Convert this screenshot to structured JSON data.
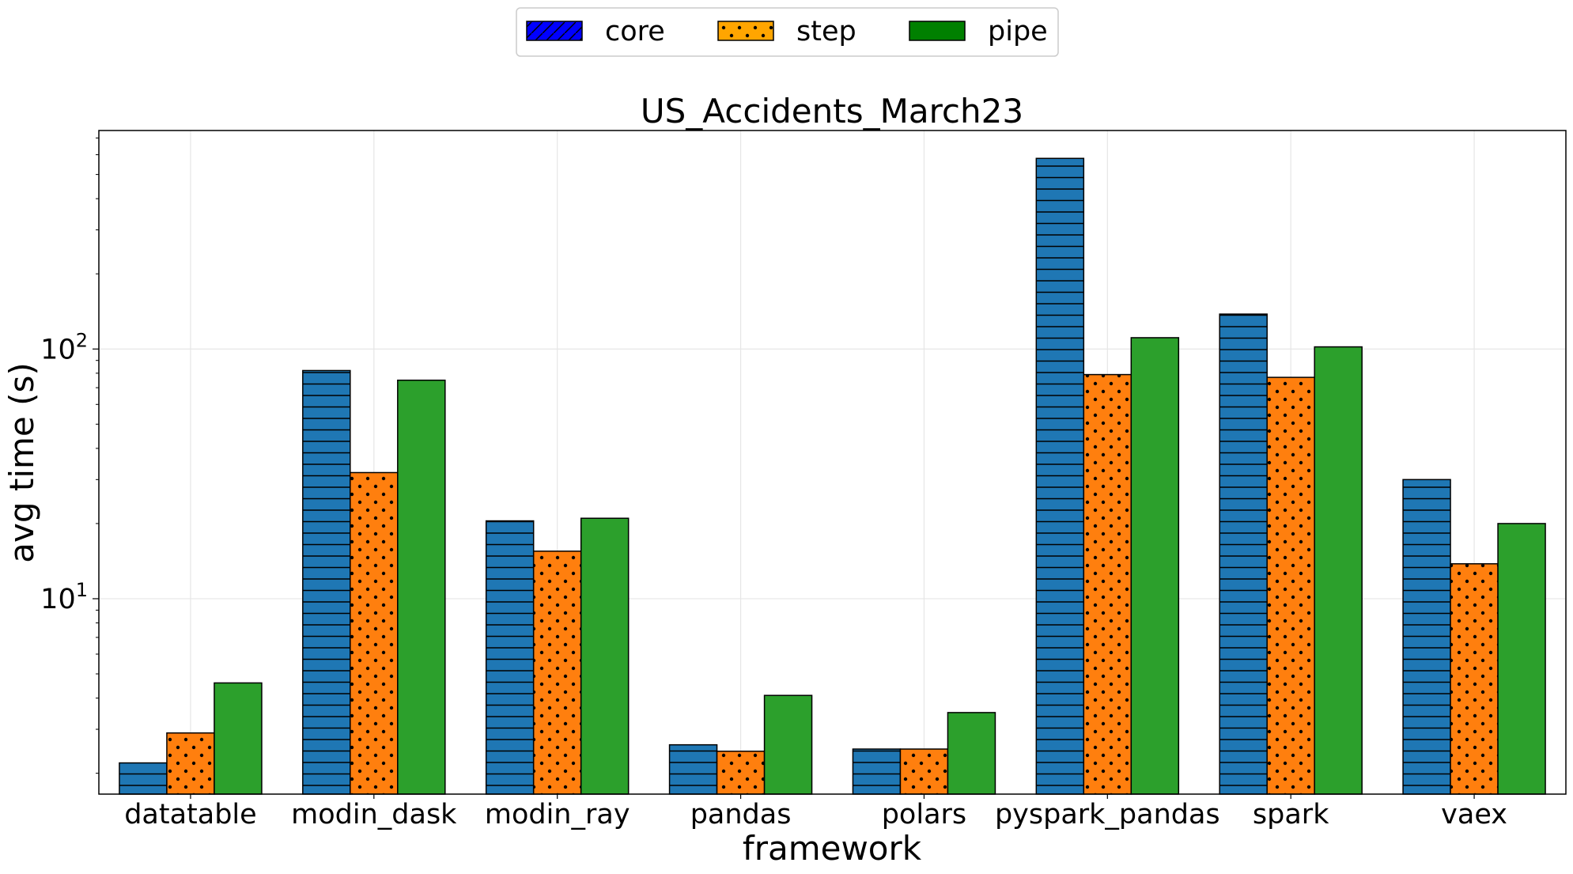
{
  "chart_data": {
    "type": "bar",
    "title": "US_Accidents_March23",
    "xlabel": "framework",
    "ylabel": "avg time (s)",
    "yscale": "log",
    "ylim": [
      1.65,
      750
    ],
    "yticks": [
      {
        "value": 10,
        "base": "10",
        "exp": "1"
      },
      {
        "value": 100,
        "base": "10",
        "exp": "2"
      }
    ],
    "grid": true,
    "legend_position": "top-center",
    "categories": [
      "datatable",
      "modin_dask",
      "modin_ray",
      "pandas",
      "polars",
      "pyspark_pandas",
      "spark",
      "vaex"
    ],
    "series": [
      {
        "name": "core",
        "legend_color": "#0000ff",
        "bar_color": "#1f77b4",
        "legend_hatch": "diagonal",
        "bar_hatch": "horizontal",
        "values": [
          2.2,
          82,
          20.5,
          2.6,
          2.5,
          580,
          138,
          30
        ]
      },
      {
        "name": "step",
        "legend_color": "#ffa500",
        "bar_color": "#ff7f0e",
        "legend_hatch": "dots",
        "bar_hatch": "dots",
        "values": [
          2.9,
          32,
          15.5,
          2.45,
          2.5,
          79,
          77,
          13.8
        ]
      },
      {
        "name": "pipe",
        "legend_color": "#008000",
        "bar_color": "#2ca02c",
        "legend_hatch": "none",
        "bar_hatch": "none",
        "values": [
          4.6,
          75,
          21,
          4.1,
          3.5,
          111,
          102,
          20
        ]
      }
    ]
  }
}
